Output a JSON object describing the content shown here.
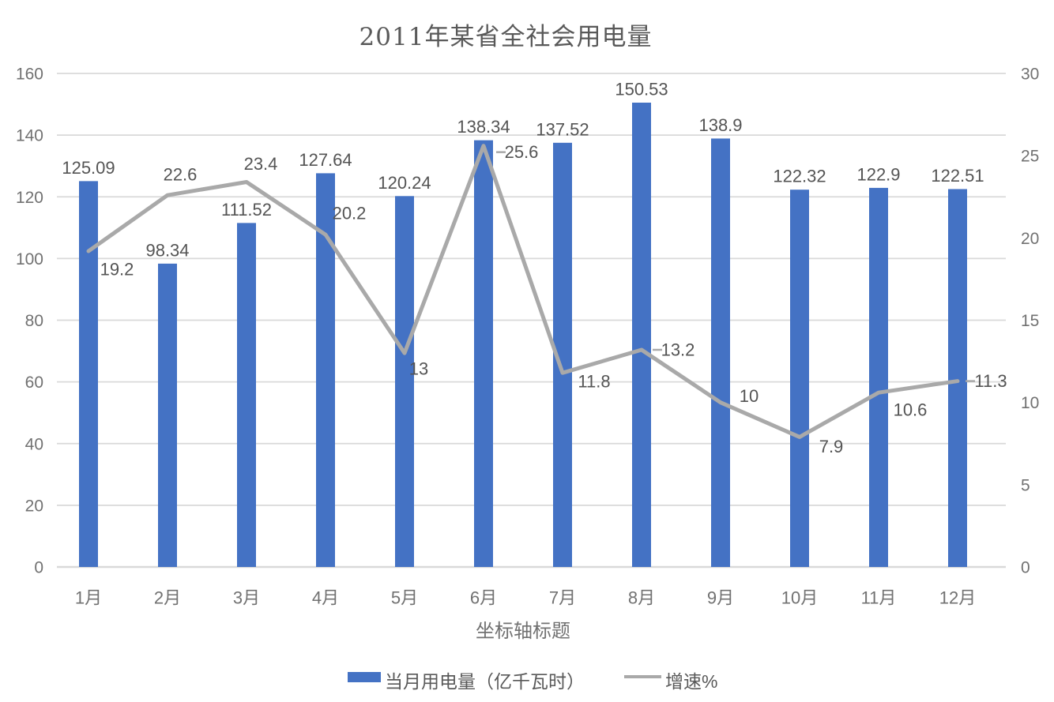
{
  "chart_data": {
    "type": "combo-bar-line",
    "title": "2011年某省全社会用电量",
    "x_axis_title": "坐标轴标题",
    "categories": [
      "1月",
      "2月",
      "3月",
      "4月",
      "5月",
      "6月",
      "7月",
      "8月",
      "9月",
      "10月",
      "11月",
      "12月"
    ],
    "series": [
      {
        "name": "当月用电量（亿千瓦时）",
        "type": "bar",
        "axis": "left",
        "color": "#4472C4",
        "values": [
          125.09,
          98.34,
          111.52,
          127.64,
          120.24,
          138.34,
          137.52,
          150.53,
          138.9,
          122.32,
          122.9,
          122.51
        ],
        "labels": [
          "125.09",
          "98.34",
          "111.52",
          "127.64",
          "120.24",
          "138.34",
          "137.52",
          "150.53",
          "138.9",
          "122.32",
          "122.9",
          "122.51"
        ]
      },
      {
        "name": "增速%",
        "type": "line",
        "axis": "right",
        "color": "#A9A9A9",
        "values": [
          19.2,
          22.6,
          23.4,
          20.2,
          13,
          25.6,
          11.8,
          13.2,
          10,
          7.9,
          10.6,
          11.3
        ],
        "labels": [
          "19.2",
          "22.6",
          "23.4",
          "20.2",
          "13",
          "25.6",
          "11.8",
          "13.2",
          "10",
          "7.9",
          "10.6",
          "11.3"
        ]
      }
    ],
    "left_axis": {
      "min": 0,
      "max": 160,
      "step": 20,
      "ticks": [
        "0",
        "20",
        "40",
        "60",
        "80",
        "100",
        "120",
        "140",
        "160"
      ]
    },
    "right_axis": {
      "min": 0,
      "max": 30,
      "step": 5,
      "ticks": [
        "0",
        "5",
        "10",
        "15",
        "20",
        "25",
        "30"
      ]
    },
    "grid": true,
    "legend_position": "bottom",
    "colors": {
      "bar": "#4472C4",
      "line": "#A9A9A9",
      "gridline": "#D9D9D9",
      "axis_line": "#D9D9D9",
      "axis_label": "#717171",
      "data_label": "#545454",
      "title": "#595959"
    }
  }
}
